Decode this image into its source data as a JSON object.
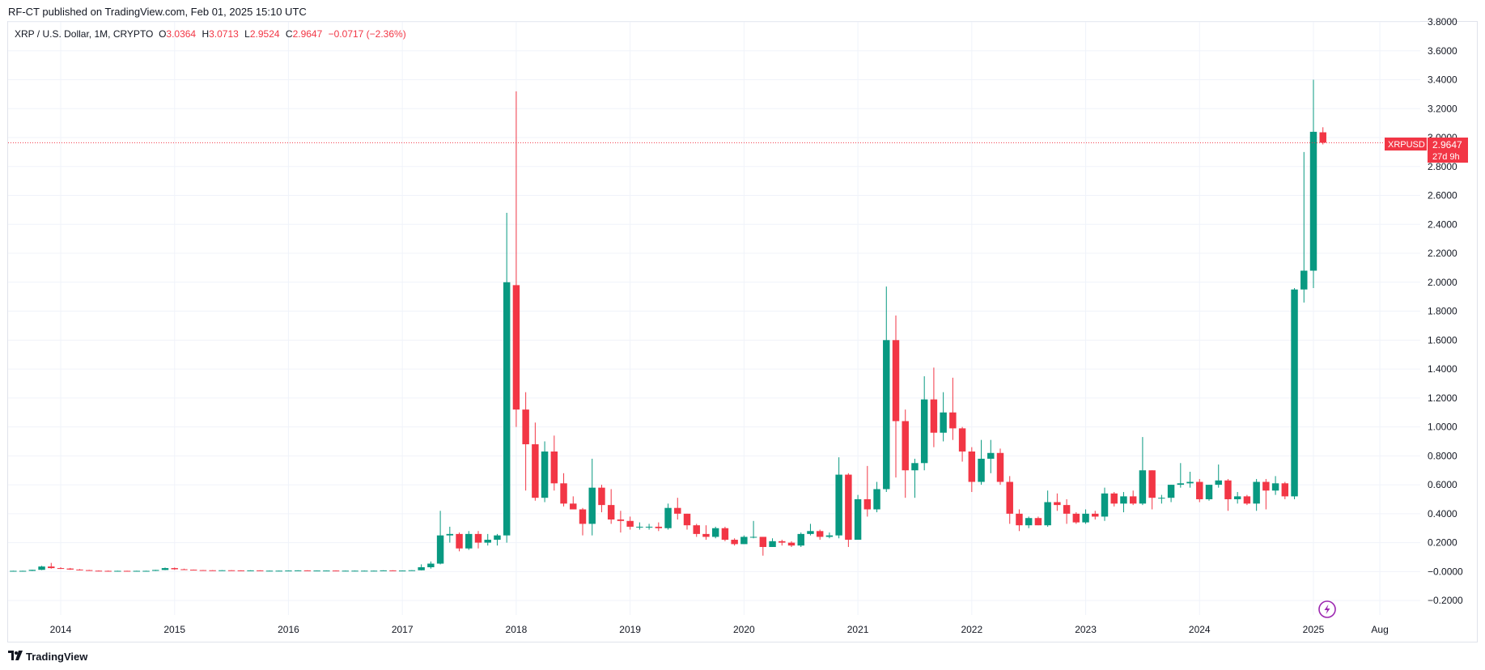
{
  "header": {
    "publish_line": "RF-CT published on TradingView.com, Feb 01, 2025 15:10 UTC"
  },
  "legend": {
    "symbol": "XRP / U.S. Dollar, 1M, CRYPTO",
    "o_key": "O",
    "o_val": "3.0364",
    "h_key": "H",
    "h_val": "3.0713",
    "l_key": "L",
    "l_val": "2.9524",
    "c_key": "C",
    "c_val": "2.9647",
    "change": "−0.0717 (−2.36%)"
  },
  "price_badge": {
    "symbol": "XRPUSD",
    "price": "2.9647",
    "countdown": "27d 9h",
    "value": 2.9647
  },
  "footer": {
    "brand": "TradingView"
  },
  "colors": {
    "up": "#089981",
    "down": "#f23645",
    "grid": "#f0f3fa",
    "last_price": "#f23645",
    "text": "#131722",
    "border": "#e0e3eb"
  },
  "icons": [
    "tradingview-logo-icon",
    "lightning-icon"
  ],
  "chart_data": {
    "type": "candlestick",
    "interval": "1M",
    "grid": true,
    "y_axis": {
      "position": "right",
      "range": [
        -0.3,
        3.8
      ],
      "ticks": [
        -0.2,
        0.0,
        0.2,
        0.4,
        0.6,
        0.8,
        1.0,
        1.2,
        1.4,
        1.6,
        1.8,
        2.0,
        2.2,
        2.4,
        2.6,
        2.8,
        3.0,
        3.2,
        3.4,
        3.6,
        3.8
      ],
      "tick_labels": [
        "−0.2000",
        "−0.0000",
        "0.2000",
        "0.4000",
        "0.6000",
        "0.8000",
        "1.0000",
        "1.2000",
        "1.4000",
        "1.6000",
        "1.8000",
        "2.0000",
        "2.2000",
        "2.4000",
        "2.6000",
        "2.8000",
        "3.0000",
        "3.2000",
        "3.4000",
        "3.6000",
        "3.8000"
      ]
    },
    "x_axis": {
      "range": [
        "2013-06",
        "2025-12"
      ],
      "ticks": [
        "2014-01",
        "2015-01",
        "2016-01",
        "2017-01",
        "2018-01",
        "2019-01",
        "2020-01",
        "2021-01",
        "2022-01",
        "2023-01",
        "2024-01",
        "2025-01",
        "2025-08"
      ],
      "tick_labels": [
        "2014",
        "2015",
        "2016",
        "2017",
        "2018",
        "2019",
        "2020",
        "2021",
        "2022",
        "2023",
        "2024",
        "2025",
        "Aug"
      ]
    },
    "candles": [
      {
        "date": "2013-08",
        "o": 0.005,
        "h": 0.006,
        "l": 0.004,
        "c": 0.005
      },
      {
        "date": "2013-09",
        "o": 0.005,
        "h": 0.006,
        "l": 0.004,
        "c": 0.005
      },
      {
        "date": "2013-10",
        "o": 0.005,
        "h": 0.013,
        "l": 0.004,
        "c": 0.012
      },
      {
        "date": "2013-11",
        "o": 0.012,
        "h": 0.04,
        "l": 0.01,
        "c": 0.035
      },
      {
        "date": "2013-12",
        "o": 0.035,
        "h": 0.06,
        "l": 0.02,
        "c": 0.024
      },
      {
        "date": "2014-01",
        "o": 0.024,
        "h": 0.03,
        "l": 0.018,
        "c": 0.021
      },
      {
        "date": "2014-02",
        "o": 0.021,
        "h": 0.025,
        "l": 0.012,
        "c": 0.014
      },
      {
        "date": "2014-03",
        "o": 0.014,
        "h": 0.017,
        "l": 0.008,
        "c": 0.01
      },
      {
        "date": "2014-04",
        "o": 0.01,
        "h": 0.012,
        "l": 0.005,
        "c": 0.006
      },
      {
        "date": "2014-05",
        "o": 0.006,
        "h": 0.008,
        "l": 0.004,
        "c": 0.005
      },
      {
        "date": "2014-06",
        "o": 0.005,
        "h": 0.007,
        "l": 0.003,
        "c": 0.004
      },
      {
        "date": "2014-07",
        "o": 0.004,
        "h": 0.006,
        "l": 0.003,
        "c": 0.005
      },
      {
        "date": "2014-08",
        "o": 0.005,
        "h": 0.006,
        "l": 0.003,
        "c": 0.004
      },
      {
        "date": "2014-09",
        "o": 0.004,
        "h": 0.006,
        "l": 0.003,
        "c": 0.005
      },
      {
        "date": "2014-10",
        "o": 0.005,
        "h": 0.006,
        "l": 0.004,
        "c": 0.005
      },
      {
        "date": "2014-11",
        "o": 0.005,
        "h": 0.012,
        "l": 0.004,
        "c": 0.011
      },
      {
        "date": "2014-12",
        "o": 0.011,
        "h": 0.028,
        "l": 0.01,
        "c": 0.024
      },
      {
        "date": "2015-01",
        "o": 0.024,
        "h": 0.028,
        "l": 0.012,
        "c": 0.016
      },
      {
        "date": "2015-02",
        "o": 0.016,
        "h": 0.02,
        "l": 0.012,
        "c": 0.013
      },
      {
        "date": "2015-03",
        "o": 0.013,
        "h": 0.014,
        "l": 0.009,
        "c": 0.01
      },
      {
        "date": "2015-04",
        "o": 0.01,
        "h": 0.011,
        "l": 0.008,
        "c": 0.009
      },
      {
        "date": "2015-05",
        "o": 0.009,
        "h": 0.01,
        "l": 0.007,
        "c": 0.008
      },
      {
        "date": "2015-06",
        "o": 0.008,
        "h": 0.01,
        "l": 0.007,
        "c": 0.009
      },
      {
        "date": "2015-07",
        "o": 0.009,
        "h": 0.01,
        "l": 0.007,
        "c": 0.008
      },
      {
        "date": "2015-08",
        "o": 0.008,
        "h": 0.009,
        "l": 0.006,
        "c": 0.007
      },
      {
        "date": "2015-09",
        "o": 0.007,
        "h": 0.009,
        "l": 0.006,
        "c": 0.008
      },
      {
        "date": "2015-10",
        "o": 0.008,
        "h": 0.009,
        "l": 0.005,
        "c": 0.006
      },
      {
        "date": "2015-11",
        "o": 0.006,
        "h": 0.007,
        "l": 0.005,
        "c": 0.006
      },
      {
        "date": "2015-12",
        "o": 0.006,
        "h": 0.007,
        "l": 0.005,
        "c": 0.006
      },
      {
        "date": "2016-01",
        "o": 0.006,
        "h": 0.008,
        "l": 0.005,
        "c": 0.007
      },
      {
        "date": "2016-02",
        "o": 0.007,
        "h": 0.009,
        "l": 0.006,
        "c": 0.008
      },
      {
        "date": "2016-03",
        "o": 0.008,
        "h": 0.009,
        "l": 0.006,
        "c": 0.007
      },
      {
        "date": "2016-04",
        "o": 0.007,
        "h": 0.008,
        "l": 0.006,
        "c": 0.007
      },
      {
        "date": "2016-05",
        "o": 0.007,
        "h": 0.008,
        "l": 0.006,
        "c": 0.007
      },
      {
        "date": "2016-06",
        "o": 0.007,
        "h": 0.008,
        "l": 0.005,
        "c": 0.006
      },
      {
        "date": "2016-07",
        "o": 0.006,
        "h": 0.007,
        "l": 0.005,
        "c": 0.006
      },
      {
        "date": "2016-08",
        "o": 0.006,
        "h": 0.007,
        "l": 0.005,
        "c": 0.006
      },
      {
        "date": "2016-09",
        "o": 0.006,
        "h": 0.007,
        "l": 0.005,
        "c": 0.006
      },
      {
        "date": "2016-10",
        "o": 0.006,
        "h": 0.007,
        "l": 0.005,
        "c": 0.006
      },
      {
        "date": "2016-11",
        "o": 0.006,
        "h": 0.009,
        "l": 0.005,
        "c": 0.008
      },
      {
        "date": "2016-12",
        "o": 0.008,
        "h": 0.009,
        "l": 0.006,
        "c": 0.007
      },
      {
        "date": "2017-01",
        "o": 0.007,
        "h": 0.008,
        "l": 0.006,
        "c": 0.007
      },
      {
        "date": "2017-02",
        "o": 0.007,
        "h": 0.01,
        "l": 0.006,
        "c": 0.009
      },
      {
        "date": "2017-03",
        "o": 0.009,
        "h": 0.05,
        "l": 0.008,
        "c": 0.03
      },
      {
        "date": "2017-04",
        "o": 0.03,
        "h": 0.07,
        "l": 0.02,
        "c": 0.055
      },
      {
        "date": "2017-05",
        "o": 0.055,
        "h": 0.42,
        "l": 0.05,
        "c": 0.25
      },
      {
        "date": "2017-06",
        "o": 0.25,
        "h": 0.31,
        "l": 0.2,
        "c": 0.26
      },
      {
        "date": "2017-07",
        "o": 0.26,
        "h": 0.27,
        "l": 0.14,
        "c": 0.16
      },
      {
        "date": "2017-08",
        "o": 0.16,
        "h": 0.28,
        "l": 0.15,
        "c": 0.26
      },
      {
        "date": "2017-09",
        "o": 0.26,
        "h": 0.28,
        "l": 0.16,
        "c": 0.2
      },
      {
        "date": "2017-10",
        "o": 0.2,
        "h": 0.26,
        "l": 0.18,
        "c": 0.22
      },
      {
        "date": "2017-11",
        "o": 0.22,
        "h": 0.26,
        "l": 0.18,
        "c": 0.25
      },
      {
        "date": "2017-12",
        "o": 0.25,
        "h": 2.48,
        "l": 0.2,
        "c": 2.0
      },
      {
        "date": "2018-01",
        "o": 1.98,
        "h": 3.32,
        "l": 1.0,
        "c": 1.12
      },
      {
        "date": "2018-02",
        "o": 1.12,
        "h": 1.24,
        "l": 0.56,
        "c": 0.88
      },
      {
        "date": "2018-03",
        "o": 0.88,
        "h": 1.03,
        "l": 0.49,
        "c": 0.51
      },
      {
        "date": "2018-04",
        "o": 0.51,
        "h": 0.9,
        "l": 0.48,
        "c": 0.83
      },
      {
        "date": "2018-05",
        "o": 0.83,
        "h": 0.94,
        "l": 0.56,
        "c": 0.61
      },
      {
        "date": "2018-06",
        "o": 0.61,
        "h": 0.68,
        "l": 0.45,
        "c": 0.47
      },
      {
        "date": "2018-07",
        "o": 0.47,
        "h": 0.52,
        "l": 0.43,
        "c": 0.43
      },
      {
        "date": "2018-08",
        "o": 0.43,
        "h": 0.44,
        "l": 0.25,
        "c": 0.33
      },
      {
        "date": "2018-09",
        "o": 0.33,
        "h": 0.78,
        "l": 0.25,
        "c": 0.58
      },
      {
        "date": "2018-10",
        "o": 0.58,
        "h": 0.6,
        "l": 0.41,
        "c": 0.46
      },
      {
        "date": "2018-11",
        "o": 0.46,
        "h": 0.57,
        "l": 0.33,
        "c": 0.36
      },
      {
        "date": "2018-12",
        "o": 0.36,
        "h": 0.42,
        "l": 0.27,
        "c": 0.35
      },
      {
        "date": "2019-01",
        "o": 0.35,
        "h": 0.38,
        "l": 0.29,
        "c": 0.31
      },
      {
        "date": "2019-02",
        "o": 0.31,
        "h": 0.34,
        "l": 0.29,
        "c": 0.31
      },
      {
        "date": "2019-03",
        "o": 0.31,
        "h": 0.33,
        "l": 0.29,
        "c": 0.31
      },
      {
        "date": "2019-04",
        "o": 0.31,
        "h": 0.34,
        "l": 0.28,
        "c": 0.3
      },
      {
        "date": "2019-05",
        "o": 0.3,
        "h": 0.47,
        "l": 0.29,
        "c": 0.44
      },
      {
        "date": "2019-06",
        "o": 0.44,
        "h": 0.51,
        "l": 0.36,
        "c": 0.4
      },
      {
        "date": "2019-07",
        "o": 0.4,
        "h": 0.4,
        "l": 0.29,
        "c": 0.32
      },
      {
        "date": "2019-08",
        "o": 0.32,
        "h": 0.33,
        "l": 0.24,
        "c": 0.26
      },
      {
        "date": "2019-09",
        "o": 0.26,
        "h": 0.32,
        "l": 0.22,
        "c": 0.24
      },
      {
        "date": "2019-10",
        "o": 0.24,
        "h": 0.31,
        "l": 0.23,
        "c": 0.3
      },
      {
        "date": "2019-11",
        "o": 0.3,
        "h": 0.31,
        "l": 0.21,
        "c": 0.22
      },
      {
        "date": "2019-12",
        "o": 0.22,
        "h": 0.23,
        "l": 0.18,
        "c": 0.19
      },
      {
        "date": "2020-01",
        "o": 0.19,
        "h": 0.25,
        "l": 0.19,
        "c": 0.24
      },
      {
        "date": "2020-02",
        "o": 0.24,
        "h": 0.35,
        "l": 0.23,
        "c": 0.24
      },
      {
        "date": "2020-03",
        "o": 0.24,
        "h": 0.24,
        "l": 0.11,
        "c": 0.17
      },
      {
        "date": "2020-04",
        "o": 0.17,
        "h": 0.23,
        "l": 0.17,
        "c": 0.21
      },
      {
        "date": "2020-05",
        "o": 0.21,
        "h": 0.22,
        "l": 0.18,
        "c": 0.2
      },
      {
        "date": "2020-06",
        "o": 0.2,
        "h": 0.21,
        "l": 0.17,
        "c": 0.18
      },
      {
        "date": "2020-07",
        "o": 0.18,
        "h": 0.27,
        "l": 0.17,
        "c": 0.26
      },
      {
        "date": "2020-08",
        "o": 0.26,
        "h": 0.33,
        "l": 0.25,
        "c": 0.28
      },
      {
        "date": "2020-09",
        "o": 0.28,
        "h": 0.29,
        "l": 0.22,
        "c": 0.24
      },
      {
        "date": "2020-10",
        "o": 0.24,
        "h": 0.27,
        "l": 0.23,
        "c": 0.25
      },
      {
        "date": "2020-11",
        "o": 0.25,
        "h": 0.79,
        "l": 0.23,
        "c": 0.67
      },
      {
        "date": "2020-12",
        "o": 0.67,
        "h": 0.68,
        "l": 0.17,
        "c": 0.22
      },
      {
        "date": "2021-01",
        "o": 0.22,
        "h": 0.53,
        "l": 0.22,
        "c": 0.5
      },
      {
        "date": "2021-02",
        "o": 0.5,
        "h": 0.73,
        "l": 0.38,
        "c": 0.43
      },
      {
        "date": "2021-03",
        "o": 0.43,
        "h": 0.62,
        "l": 0.41,
        "c": 0.57
      },
      {
        "date": "2021-04",
        "o": 0.57,
        "h": 1.97,
        "l": 0.55,
        "c": 1.6
      },
      {
        "date": "2021-05",
        "o": 1.6,
        "h": 1.77,
        "l": 0.65,
        "c": 1.04
      },
      {
        "date": "2021-06",
        "o": 1.04,
        "h": 1.12,
        "l": 0.51,
        "c": 0.7
      },
      {
        "date": "2021-07",
        "o": 0.7,
        "h": 0.78,
        "l": 0.51,
        "c": 0.75
      },
      {
        "date": "2021-08",
        "o": 0.75,
        "h": 1.35,
        "l": 0.7,
        "c": 1.19
      },
      {
        "date": "2021-09",
        "o": 1.19,
        "h": 1.41,
        "l": 0.86,
        "c": 0.96
      },
      {
        "date": "2021-10",
        "o": 0.96,
        "h": 1.24,
        "l": 0.9,
        "c": 1.1
      },
      {
        "date": "2021-11",
        "o": 1.1,
        "h": 1.34,
        "l": 0.91,
        "c": 0.99
      },
      {
        "date": "2021-12",
        "o": 0.99,
        "h": 1.0,
        "l": 0.76,
        "c": 0.83
      },
      {
        "date": "2022-01",
        "o": 0.83,
        "h": 0.86,
        "l": 0.55,
        "c": 0.62
      },
      {
        "date": "2022-02",
        "o": 0.62,
        "h": 0.91,
        "l": 0.6,
        "c": 0.78
      },
      {
        "date": "2022-03",
        "o": 0.78,
        "h": 0.91,
        "l": 0.68,
        "c": 0.82
      },
      {
        "date": "2022-04",
        "o": 0.82,
        "h": 0.85,
        "l": 0.6,
        "c": 0.62
      },
      {
        "date": "2022-05",
        "o": 0.62,
        "h": 0.66,
        "l": 0.33,
        "c": 0.4
      },
      {
        "date": "2022-06",
        "o": 0.4,
        "h": 0.43,
        "l": 0.28,
        "c": 0.32
      },
      {
        "date": "2022-07",
        "o": 0.32,
        "h": 0.38,
        "l": 0.3,
        "c": 0.37
      },
      {
        "date": "2022-08",
        "o": 0.37,
        "h": 0.38,
        "l": 0.32,
        "c": 0.32
      },
      {
        "date": "2022-09",
        "o": 0.32,
        "h": 0.56,
        "l": 0.31,
        "c": 0.48
      },
      {
        "date": "2022-10",
        "o": 0.48,
        "h": 0.54,
        "l": 0.42,
        "c": 0.46
      },
      {
        "date": "2022-11",
        "o": 0.46,
        "h": 0.5,
        "l": 0.33,
        "c": 0.4
      },
      {
        "date": "2022-12",
        "o": 0.4,
        "h": 0.41,
        "l": 0.33,
        "c": 0.34
      },
      {
        "date": "2023-01",
        "o": 0.34,
        "h": 0.43,
        "l": 0.33,
        "c": 0.4
      },
      {
        "date": "2023-02",
        "o": 0.4,
        "h": 0.42,
        "l": 0.36,
        "c": 0.38
      },
      {
        "date": "2023-03",
        "o": 0.38,
        "h": 0.58,
        "l": 0.35,
        "c": 0.54
      },
      {
        "date": "2023-04",
        "o": 0.54,
        "h": 0.55,
        "l": 0.45,
        "c": 0.47
      },
      {
        "date": "2023-05",
        "o": 0.47,
        "h": 0.55,
        "l": 0.41,
        "c": 0.52
      },
      {
        "date": "2023-06",
        "o": 0.52,
        "h": 0.56,
        "l": 0.46,
        "c": 0.47
      },
      {
        "date": "2023-07",
        "o": 0.47,
        "h": 0.93,
        "l": 0.46,
        "c": 0.7
      },
      {
        "date": "2023-08",
        "o": 0.7,
        "h": 0.7,
        "l": 0.43,
        "c": 0.51
      },
      {
        "date": "2023-09",
        "o": 0.51,
        "h": 0.53,
        "l": 0.47,
        "c": 0.51
      },
      {
        "date": "2023-10",
        "o": 0.51,
        "h": 0.6,
        "l": 0.48,
        "c": 0.6
      },
      {
        "date": "2023-11",
        "o": 0.6,
        "h": 0.75,
        "l": 0.58,
        "c": 0.61
      },
      {
        "date": "2023-12",
        "o": 0.61,
        "h": 0.69,
        "l": 0.58,
        "c": 0.62
      },
      {
        "date": "2024-01",
        "o": 0.62,
        "h": 0.64,
        "l": 0.48,
        "c": 0.5
      },
      {
        "date": "2024-02",
        "o": 0.5,
        "h": 0.6,
        "l": 0.49,
        "c": 0.6
      },
      {
        "date": "2024-03",
        "o": 0.6,
        "h": 0.74,
        "l": 0.58,
        "c": 0.63
      },
      {
        "date": "2024-04",
        "o": 0.63,
        "h": 0.64,
        "l": 0.42,
        "c": 0.5
      },
      {
        "date": "2024-05",
        "o": 0.5,
        "h": 0.55,
        "l": 0.47,
        "c": 0.52
      },
      {
        "date": "2024-06",
        "o": 0.52,
        "h": 0.53,
        "l": 0.46,
        "c": 0.47
      },
      {
        "date": "2024-07",
        "o": 0.47,
        "h": 0.64,
        "l": 0.42,
        "c": 0.62
      },
      {
        "date": "2024-08",
        "o": 0.62,
        "h": 0.64,
        "l": 0.43,
        "c": 0.56
      },
      {
        "date": "2024-09",
        "o": 0.56,
        "h": 0.66,
        "l": 0.53,
        "c": 0.61
      },
      {
        "date": "2024-10",
        "o": 0.61,
        "h": 0.62,
        "l": 0.5,
        "c": 0.52
      },
      {
        "date": "2024-11",
        "o": 0.52,
        "h": 1.96,
        "l": 0.5,
        "c": 1.95
      },
      {
        "date": "2024-12",
        "o": 1.95,
        "h": 2.9,
        "l": 1.86,
        "c": 2.08
      },
      {
        "date": "2025-01",
        "o": 2.08,
        "h": 3.4,
        "l": 1.96,
        "c": 3.04
      },
      {
        "date": "2025-02",
        "o": 3.0364,
        "h": 3.0713,
        "l": 2.9524,
        "c": 2.9647
      }
    ]
  }
}
